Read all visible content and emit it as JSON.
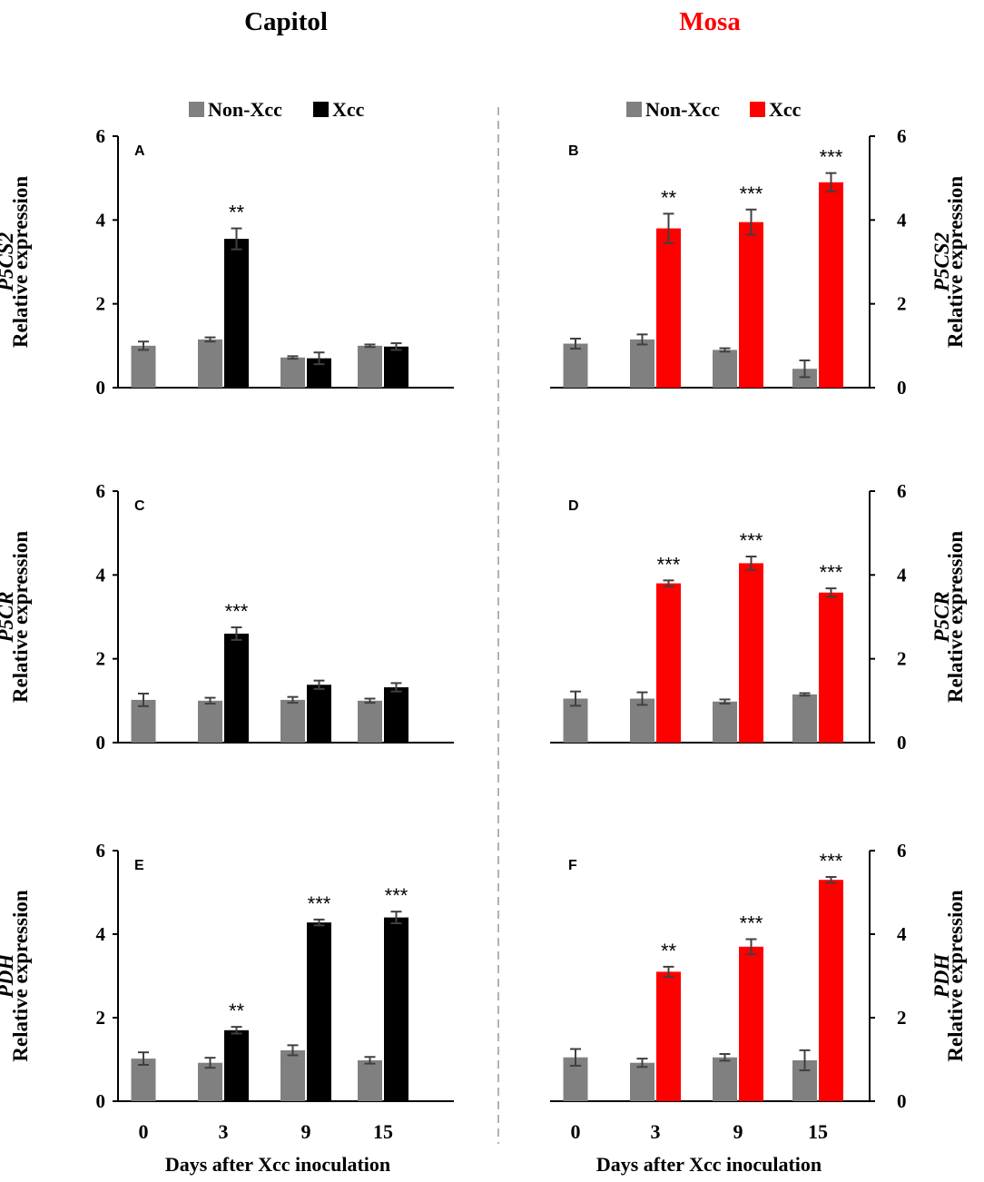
{
  "figure": {
    "columns": [
      {
        "title": "Capitol",
        "color": "#000000",
        "legend": [
          "Non-Xcc",
          "Xcc"
        ],
        "xcc_color": "#000000"
      },
      {
        "title": "Mosa",
        "color": "#ff0000",
        "legend": [
          "Non-Xcc",
          "Xcc"
        ],
        "xcc_color": "#ff0000"
      }
    ],
    "colors": {
      "non_xcc": "#808080",
      "error_bar": "#404040",
      "divider": "#999999"
    },
    "xlabel": "Days after Xcc inoculation",
    "ylabel": "Relative expression",
    "categories": [
      "0",
      "3",
      "9",
      "15"
    ]
  },
  "chart_data": [
    {
      "panel": "A",
      "type": "bar",
      "cultivar": "Capitol",
      "gene": "P5CS2",
      "ylabel": "Relative expression",
      "xlabel": "",
      "ylim": [
        0,
        6
      ],
      "yticks": [
        0,
        2,
        4,
        6
      ],
      "categories": [
        "0",
        "3",
        "9",
        "15"
      ],
      "series": [
        {
          "name": "Non-Xcc",
          "values": [
            1.0,
            1.15,
            0.72,
            1.0
          ],
          "errors": [
            0.1,
            0.05,
            0.03,
            0.03
          ]
        },
        {
          "name": "Xcc",
          "values": [
            null,
            3.55,
            0.7,
            0.98
          ],
          "errors": [
            null,
            0.25,
            0.14,
            0.08
          ]
        }
      ],
      "significance": [
        null,
        "**",
        null,
        null
      ]
    },
    {
      "panel": "B",
      "type": "bar",
      "cultivar": "Mosa",
      "gene": "P5CS2",
      "ylabel": "Relative expression",
      "xlabel": "",
      "ylim": [
        0,
        6
      ],
      "yticks": [
        0,
        2,
        4,
        6
      ],
      "categories": [
        "0",
        "3",
        "9",
        "15"
      ],
      "series": [
        {
          "name": "Non-Xcc",
          "values": [
            1.05,
            1.15,
            0.9,
            0.45
          ],
          "errors": [
            0.12,
            0.12,
            0.04,
            0.2
          ]
        },
        {
          "name": "Xcc",
          "values": [
            null,
            3.8,
            3.95,
            4.9
          ],
          "errors": [
            null,
            0.35,
            0.3,
            0.22
          ]
        }
      ],
      "significance": [
        null,
        "**",
        "***",
        "***"
      ]
    },
    {
      "panel": "C",
      "type": "bar",
      "cultivar": "Capitol",
      "gene": "P5CR",
      "ylabel": "Relative expression",
      "xlabel": "",
      "ylim": [
        0,
        6
      ],
      "yticks": [
        0,
        2,
        4,
        6
      ],
      "categories": [
        "0",
        "3",
        "9",
        "15"
      ],
      "series": [
        {
          "name": "Non-Xcc",
          "values": [
            1.02,
            1.0,
            1.02,
            1.0
          ],
          "errors": [
            0.15,
            0.07,
            0.07,
            0.05
          ]
        },
        {
          "name": "Xcc",
          "values": [
            null,
            2.6,
            1.38,
            1.32
          ],
          "errors": [
            null,
            0.15,
            0.1,
            0.1
          ]
        }
      ],
      "significance": [
        null,
        "***",
        null,
        null
      ]
    },
    {
      "panel": "D",
      "type": "bar",
      "cultivar": "Mosa",
      "gene": "P5CR",
      "ylabel": "Relative expression",
      "xlabel": "",
      "ylim": [
        0,
        6
      ],
      "yticks": [
        0,
        2,
        4,
        6
      ],
      "categories": [
        "0",
        "3",
        "9",
        "15"
      ],
      "series": [
        {
          "name": "Non-Xcc",
          "values": [
            1.05,
            1.05,
            0.98,
            1.15
          ],
          "errors": [
            0.17,
            0.15,
            0.05,
            0.03
          ]
        },
        {
          "name": "Xcc",
          "values": [
            null,
            3.8,
            4.28,
            3.58
          ],
          "errors": [
            null,
            0.07,
            0.16,
            0.1
          ]
        }
      ],
      "significance": [
        null,
        "***",
        "***",
        "***"
      ]
    },
    {
      "panel": "E",
      "type": "bar",
      "cultivar": "Capitol",
      "gene": "PDH",
      "ylabel": "Relative expression",
      "xlabel": "Days after Xcc inoculation",
      "ylim": [
        0,
        6
      ],
      "yticks": [
        0,
        2,
        4,
        6
      ],
      "categories": [
        "0",
        "3",
        "9",
        "15"
      ],
      "series": [
        {
          "name": "Non-Xcc",
          "values": [
            1.02,
            0.92,
            1.22,
            0.98
          ],
          "errors": [
            0.15,
            0.12,
            0.12,
            0.08
          ]
        },
        {
          "name": "Xcc",
          "values": [
            null,
            1.7,
            4.28,
            4.4
          ],
          "errors": [
            null,
            0.08,
            0.07,
            0.14
          ]
        }
      ],
      "significance": [
        null,
        "**",
        "***",
        "***"
      ]
    },
    {
      "panel": "F",
      "type": "bar",
      "cultivar": "Mosa",
      "gene": "PDH",
      "ylabel": "Relative expression",
      "xlabel": "Days after Xcc inoculation",
      "ylim": [
        0,
        6
      ],
      "yticks": [
        0,
        2,
        4,
        6
      ],
      "categories": [
        "0",
        "3",
        "9",
        "15"
      ],
      "series": [
        {
          "name": "Non-Xcc",
          "values": [
            1.05,
            0.92,
            1.05,
            0.98
          ],
          "errors": [
            0.2,
            0.1,
            0.08,
            0.24
          ]
        },
        {
          "name": "Xcc",
          "values": [
            null,
            3.1,
            3.7,
            5.3
          ],
          "errors": [
            null,
            0.12,
            0.18,
            0.07
          ]
        }
      ],
      "significance": [
        null,
        "**",
        "***",
        "***"
      ]
    }
  ]
}
